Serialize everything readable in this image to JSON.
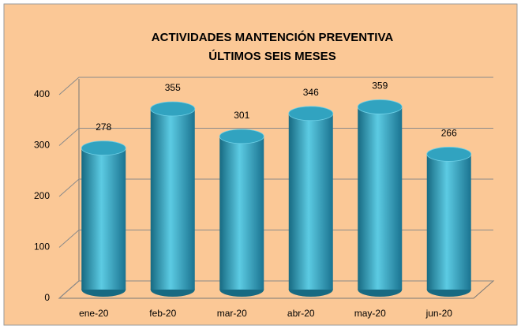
{
  "chart_data": {
    "type": "bar",
    "title": "ACTIVIDADES MANTENCIÓN PREVENTIVA",
    "subtitle": "ÚLTIMOS SEIS MESES",
    "categories": [
      "ene-20",
      "feb-20",
      "mar-20",
      "abr-20",
      "may-20",
      "jun-20"
    ],
    "values": [
      278,
      355,
      301,
      346,
      359,
      266
    ],
    "color": "#31a3c0",
    "ylim": [
      0,
      400
    ],
    "yticks": [
      0,
      100,
      200,
      300,
      400
    ],
    "grid": true
  }
}
